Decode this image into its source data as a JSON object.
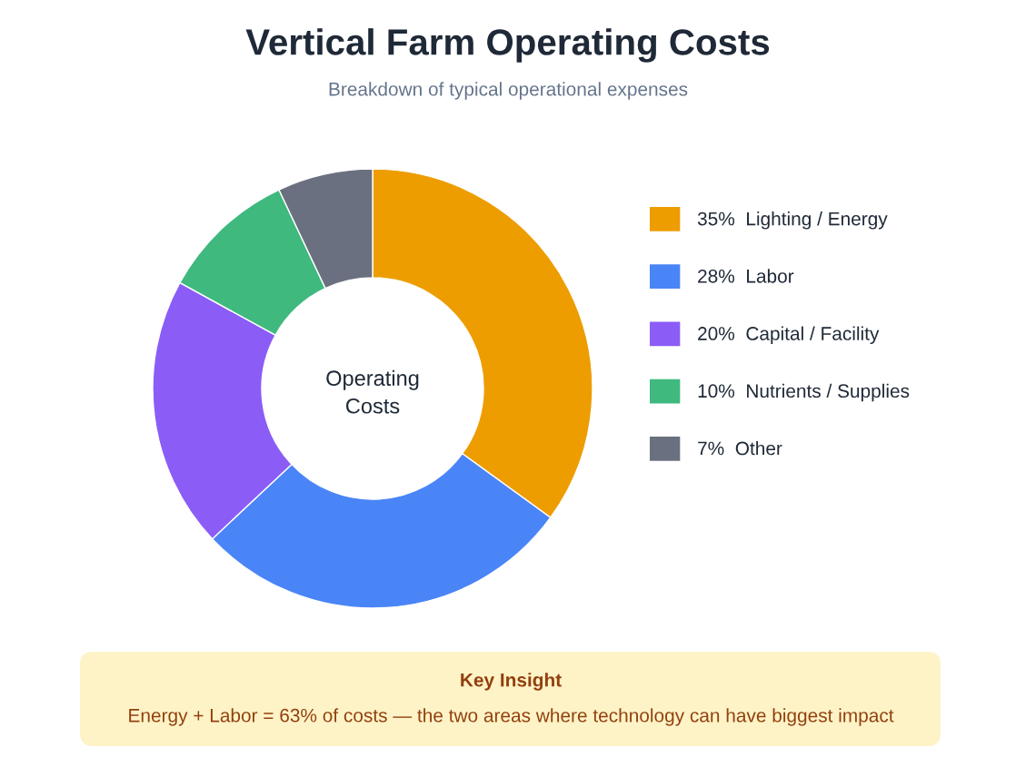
{
  "chart_data": {
    "type": "donut",
    "title": "Vertical Farm Operating Costs",
    "subtitle": "Breakdown of typical operational expenses",
    "categories": [
      "Lighting / Energy",
      "Labor",
      "Capital / Facility",
      "Nutrients / Supplies",
      "Other"
    ],
    "values": [
      35,
      28,
      20,
      10,
      7
    ],
    "value_labels": [
      "35%",
      "28%",
      "20%",
      "10%",
      "7%"
    ],
    "colors": [
      "#ed9d00",
      "#4a85f7",
      "#8b5cf6",
      "#3fb97e",
      "#6b7080"
    ],
    "legend": "right",
    "annotations": [
      "Operating\nCosts",
      "Key Insight",
      "Energy + Labor = 63% of costs — the two areas where technology can have biggest impact"
    ]
  }
}
